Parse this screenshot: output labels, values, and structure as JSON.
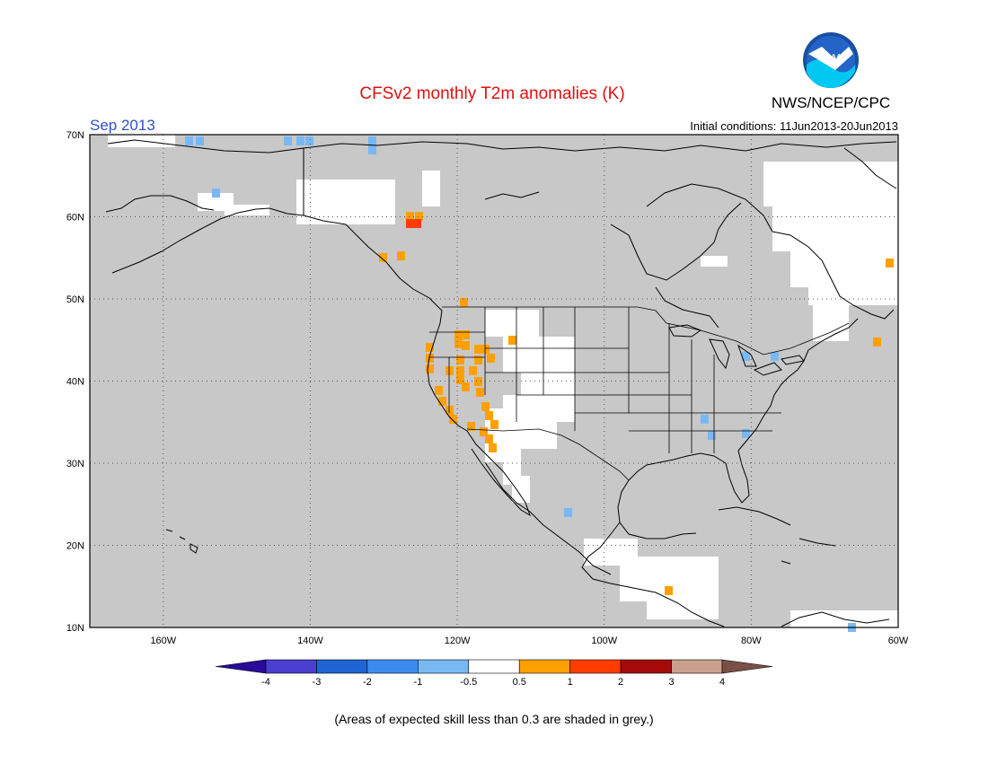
{
  "header": {
    "title": "CFSv2 monthly T2m anomalies (K)",
    "agency": "NWS/NCEP/CPC",
    "logo_text": "NOAA",
    "month": "Sep 2013",
    "initial_conditions": "Initial conditions: 11Jun2013-20Jun2013"
  },
  "map": {
    "lat_labels": [
      "70N",
      "60N",
      "50N",
      "40N",
      "30N",
      "20N",
      "10N"
    ],
    "lon_labels": [
      "160W",
      "140W",
      "120W",
      "100W",
      "80W",
      "60W"
    ],
    "lat_range": [
      10,
      70
    ],
    "lon_range": [
      -170,
      -60
    ],
    "grid": "dotted",
    "masked_color": "#c8c8c8"
  },
  "colorbar": {
    "bins": [
      {
        "color": "#2a0a9a"
      },
      {
        "color": "#4a3fcf"
      },
      {
        "color": "#1e64d2"
      },
      {
        "color": "#3c8cf0"
      },
      {
        "color": "#78b8f5"
      },
      {
        "color": "#ffffff"
      },
      {
        "color": "#ffa000"
      },
      {
        "color": "#ff3c00"
      },
      {
        "color": "#a50a0a"
      },
      {
        "color": "#c8a08c"
      },
      {
        "color": "#785046"
      }
    ],
    "labels": [
      "-4",
      "-3",
      "-2",
      "-1",
      "-0.5",
      "0.5",
      "1",
      "2",
      "3",
      "4"
    ]
  },
  "footer": {
    "note": "(Areas of expected skill less than 0.3 are shaded in grey.)"
  }
}
